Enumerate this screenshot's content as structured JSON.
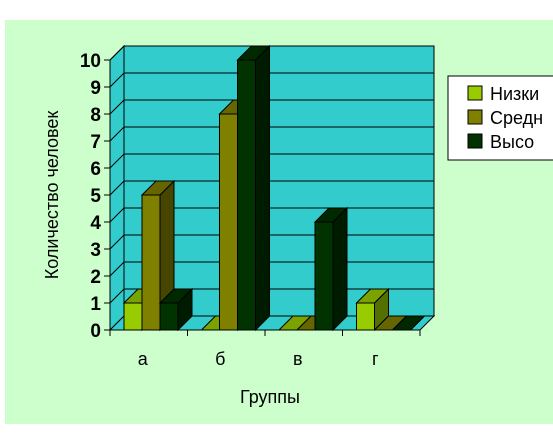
{
  "chart_data": {
    "type": "bar",
    "style": "3d-clustered-column",
    "categories": [
      "а",
      "б",
      "в",
      "г"
    ],
    "series": [
      {
        "name": "Низкий",
        "values": [
          1,
          0,
          0,
          1
        ],
        "color": "#99cc00"
      },
      {
        "name": "Средний",
        "values": [
          5,
          8,
          0,
          0
        ],
        "color": "#808000"
      },
      {
        "name": "Высокий",
        "values": [
          1,
          10,
          4,
          0
        ],
        "color": "#003300"
      }
    ],
    "xlabel": "Группы",
    "ylabel": "Количество человек",
    "ylim": [
      0,
      10
    ],
    "yticks": [
      0,
      1,
      2,
      3,
      4,
      5,
      6,
      7,
      8,
      9,
      10
    ],
    "grid": true,
    "legend_position": "right",
    "plot_background": "#33cccc",
    "chart_background": "#ccffcc",
    "legend_labels_visible": [
      "Низки",
      "Средн",
      "Высо"
    ]
  }
}
